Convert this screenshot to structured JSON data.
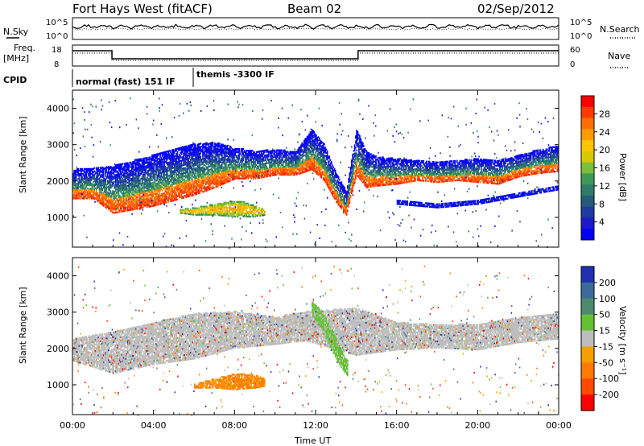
{
  "header": {
    "station": "Fort Hays West (fitACF)",
    "beam": "Beam 02",
    "date": "02/Sep/2012"
  },
  "top_panels": {
    "nsky_label": "N.Sky",
    "nsky_ticks": [
      "10^5",
      "10^0"
    ],
    "nsearch_label": "N.Search",
    "nsearch_ticks": [
      "10^5",
      "10^0"
    ],
    "freq_label_line1": "Freq.",
    "freq_label_line2": "[MHz]",
    "freq_ticks": [
      "18",
      "8"
    ],
    "nave_label": "Nave",
    "nave_ticks": [
      "60",
      "0"
    ],
    "cpid_label": "CPID",
    "cpid_modes": [
      "normal (fast) 151 IF",
      "themis -3300 IF"
    ]
  },
  "panels": {
    "ylabel": "Slant Range [km]",
    "yticks": [
      "1000",
      "2000",
      "3000",
      "4000"
    ],
    "xticks": [
      "00:00",
      "04:00",
      "08:00",
      "12:00",
      "16:00",
      "20:00",
      "00:00"
    ],
    "xlabel": "Time UT"
  },
  "colorbars": {
    "power_label": "Power [dB]",
    "power_ticks": [
      "28",
      "24",
      "20",
      "16",
      "12",
      "8",
      "4"
    ],
    "power_colors": [
      "#ff0000",
      "#ff3a00",
      "#ff6e00",
      "#ff9a00",
      "#ffc400",
      "#d8c800",
      "#7dbe3a",
      "#3f9a58",
      "#2f7e6a",
      "#255c7c",
      "#1e3ba0",
      "#1a1acc",
      "#0000ff"
    ],
    "velocity_label": "Velocity [m s⁻¹]",
    "velocity_ticks": [
      "200",
      "100",
      "50",
      "15",
      "-15",
      "-50",
      "-100",
      "-200"
    ],
    "velocity_colors": [
      "#2030b0",
      "#3d6a9a",
      "#4e8a6e",
      "#63c233",
      "#bdbdbd",
      "#f5a000",
      "#ff7a00",
      "#ff4a00",
      "#ff0000"
    ]
  },
  "chart_data": [
    {
      "type": "heatmap",
      "title": "Fort Hays West (fitACF) Beam 02 02/Sep/2012",
      "quantity": "Power [dB]",
      "xlabel": "Time UT",
      "ylabel": "Slant Range [km]",
      "xlim": [
        "00:00",
        "24:00"
      ],
      "ylim": [
        180,
        4500
      ],
      "scatter_bands": [
        {
          "t": [
            0,
            1,
            2,
            3,
            4,
            5,
            6,
            7,
            8,
            9,
            10,
            11,
            11.8,
            12.4,
            13,
            13.5,
            14,
            14.5,
            15,
            16,
            17,
            18,
            19,
            20,
            21,
            22,
            23,
            24
          ],
          "range_lo": [
            1500,
            1500,
            1100,
            1200,
            1300,
            1450,
            1600,
            1800,
            2050,
            2050,
            2150,
            2150,
            2300,
            2000,
            1400,
            1050,
            2150,
            1800,
            1850,
            1900,
            2000,
            1950,
            2000,
            1950,
            1900,
            2100,
            2200,
            2250
          ],
          "range_hi": [
            2300,
            2350,
            2400,
            2550,
            2700,
            2850,
            3000,
            3050,
            2900,
            2800,
            2850,
            2800,
            3400,
            3000,
            2200,
            1700,
            3400,
            2800,
            2650,
            2600,
            2550,
            2500,
            2550,
            2600,
            2550,
            2700,
            2850,
            2950
          ],
          "peak_power_db": 28
        },
        {
          "t": [
            5.3,
            6,
            7,
            8,
            8.5,
            9,
            9.5
          ],
          "range_lo": [
            1100,
            1050,
            1050,
            1000,
            1000,
            1000,
            1050
          ],
          "range_hi": [
            1200,
            1250,
            1350,
            1450,
            1400,
            1300,
            1200
          ],
          "peak_power_db": 24
        },
        {
          "t": [
            16,
            17,
            18,
            19,
            20,
            21,
            22,
            23,
            24
          ],
          "range_lo": [
            1350,
            1300,
            1250,
            1300,
            1350,
            1450,
            1550,
            1650,
            1750
          ],
          "range_hi": [
            1450,
            1400,
            1350,
            1400,
            1450,
            1550,
            1650,
            1750,
            1850
          ],
          "peak_power_db": 8
        }
      ]
    },
    {
      "type": "heatmap",
      "quantity": "Velocity [m s⁻¹]",
      "xlabel": "Time UT",
      "ylabel": "Slant Range [km]",
      "xlim": [
        "00:00",
        "24:00"
      ],
      "ylim": [
        180,
        4500
      ],
      "scatter_bands": [
        {
          "t": [
            0,
            2,
            4,
            6,
            8,
            10,
            11.5,
            14,
            16,
            18,
            20,
            22,
            24
          ],
          "range_lo": [
            1650,
            1300,
            1550,
            1700,
            2000,
            2100,
            2200,
            1800,
            1950,
            2000,
            1950,
            2150,
            2250
          ],
          "range_hi": [
            2250,
            2450,
            2700,
            2950,
            3000,
            2850,
            3000,
            3100,
            2700,
            2650,
            2650,
            2850,
            2950
          ],
          "dominant_velocity": "ground scatter (-15 to 15)"
        },
        {
          "t": [
            6,
            7,
            8,
            9,
            9.5
          ],
          "range_lo": [
            900,
            900,
            850,
            900,
            950
          ],
          "range_hi": [
            1000,
            1150,
            1300,
            1250,
            1150
          ],
          "dominant_velocity": "-50 to -100"
        },
        {
          "t": [
            11.8,
            12.3,
            12.8,
            13.2,
            13.6
          ],
          "range_lo": [
            2900,
            2500,
            1900,
            1500,
            1200
          ],
          "range_hi": [
            3300,
            3000,
            2500,
            2000,
            1600
          ],
          "dominant_velocity": "50"
        }
      ]
    }
  ]
}
